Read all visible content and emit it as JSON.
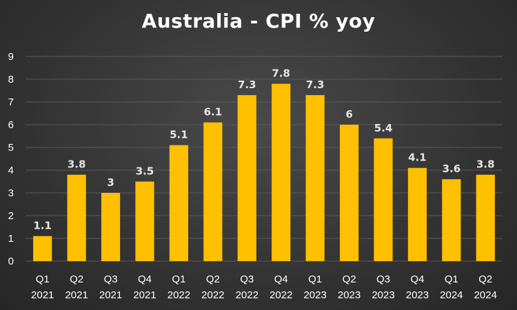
{
  "chart_data": {
    "type": "bar",
    "title": "Australia - CPI % yoy",
    "xlabel": "",
    "ylabel": "",
    "categories": [
      [
        "Q1",
        "2021"
      ],
      [
        "Q2",
        "2021"
      ],
      [
        "Q3",
        "2021"
      ],
      [
        "Q4",
        "2021"
      ],
      [
        "Q1",
        "2022"
      ],
      [
        "Q2",
        "2022"
      ],
      [
        "Q3",
        "2022"
      ],
      [
        "Q4",
        "2022"
      ],
      [
        "Q1",
        "2023"
      ],
      [
        "Q2",
        "2023"
      ],
      [
        "Q3",
        "2023"
      ],
      [
        "Q4",
        "2023"
      ],
      [
        "Q1",
        "2024"
      ],
      [
        "Q2",
        "2024"
      ]
    ],
    "values": [
      1.1,
      3.8,
      3,
      3.5,
      5.1,
      6.1,
      7.3,
      7.8,
      7.3,
      6,
      5.4,
      4.1,
      3.6,
      3.8
    ],
    "ylim": [
      0,
      9
    ],
    "yticks": [
      0,
      1,
      2,
      3,
      4,
      5,
      6,
      7,
      8,
      9
    ],
    "grid": true,
    "legend": "none",
    "colors": {
      "bar": "#FFC000",
      "gridline": "#5a5a5a",
      "tick_text": "#ffffff",
      "data_label": "#e6e6e6"
    }
  }
}
